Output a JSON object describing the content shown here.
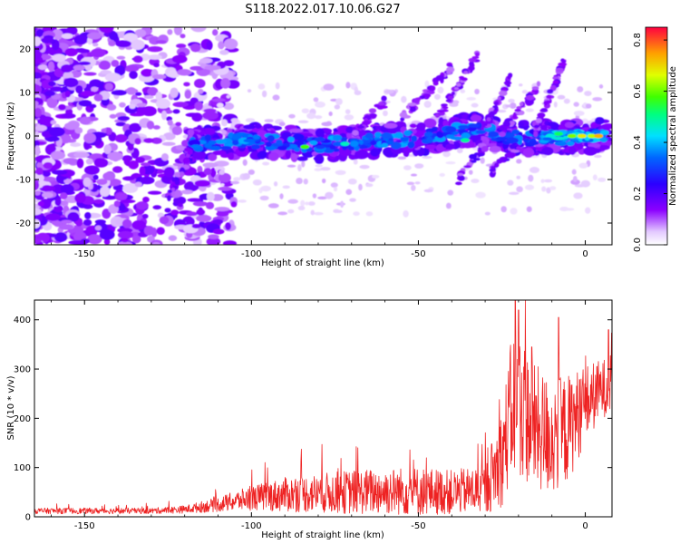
{
  "figure": {
    "title": "S118.2022.017.10.06.G27"
  },
  "chart_data": [
    {
      "type": "heatmap",
      "xlabel": "Height of straight line (km)",
      "ylabel": "Frequency (Hz)",
      "xlim": [
        -165,
        8
      ],
      "ylim": [
        -25,
        25
      ],
      "xticks": [
        -150,
        -100,
        -50,
        0
      ],
      "yticks": [
        -20,
        -10,
        0,
        10,
        20
      ],
      "colorbar": {
        "label": "Normalized spectral amplitude",
        "range": [
          0,
          0.85
        ],
        "ticks": [
          "0.0",
          "0.2",
          "0.4",
          "0.6",
          "0.8"
        ]
      },
      "ridge_points": [
        [
          -118,
          -2
        ],
        [
          -110,
          -1.5
        ],
        [
          -100,
          -1
        ],
        [
          -90,
          -1.5
        ],
        [
          -80,
          -2
        ],
        [
          -70,
          -1.5
        ],
        [
          -60,
          -1
        ],
        [
          -50,
          -0.5
        ],
        [
          -42,
          0.5
        ],
        [
          -35,
          1.5
        ],
        [
          -20,
          -0.5
        ],
        [
          -10,
          -0.5
        ],
        [
          0,
          0
        ],
        [
          5,
          0
        ]
      ]
    },
    {
      "type": "line",
      "xlabel": "Height of straight line (km)",
      "ylabel": "SNR (10 * v/v)",
      "xlim": [
        -165,
        8
      ],
      "ylim": [
        0,
        440
      ],
      "xticks": [
        -150,
        -100,
        -50,
        0
      ],
      "yticks": [
        0,
        100,
        200,
        300,
        400
      ],
      "line_color": "#ee2222",
      "envelope": {
        "x": [
          -165,
          -130,
          -120,
          -110,
          -100,
          -90,
          -80,
          -70,
          -60,
          -50,
          -40,
          -30,
          -25,
          -22,
          -20,
          -15,
          -10,
          -5,
          0,
          5,
          8
        ],
        "y_mean": [
          12,
          12,
          15,
          25,
          38,
          45,
          48,
          50,
          52,
          52,
          50,
          55,
          120,
          220,
          230,
          180,
          160,
          180,
          230,
          260,
          270
        ],
        "y_spread": [
          6,
          6,
          8,
          15,
          25,
          35,
          40,
          45,
          48,
          50,
          45,
          50,
          100,
          150,
          150,
          130,
          120,
          110,
          80,
          60,
          60
        ]
      },
      "peaks": [
        [
          -28,
          148
        ],
        [
          -21,
          440
        ],
        [
          -20,
          420
        ],
        [
          -8,
          405
        ],
        [
          -16,
          345
        ],
        [
          7,
          380
        ]
      ]
    }
  ]
}
